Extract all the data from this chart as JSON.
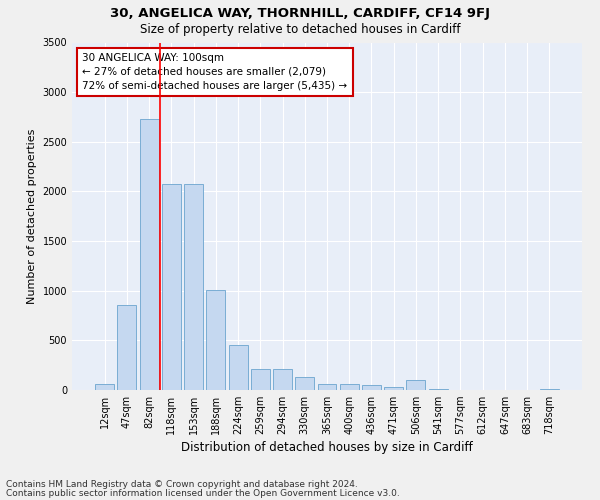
{
  "title1": "30, ANGELICA WAY, THORNHILL, CARDIFF, CF14 9FJ",
  "title2": "Size of property relative to detached houses in Cardiff",
  "xlabel": "Distribution of detached houses by size in Cardiff",
  "ylabel": "Number of detached properties",
  "categories": [
    "12sqm",
    "47sqm",
    "82sqm",
    "118sqm",
    "153sqm",
    "188sqm",
    "224sqm",
    "259sqm",
    "294sqm",
    "330sqm",
    "365sqm",
    "400sqm",
    "436sqm",
    "471sqm",
    "506sqm",
    "541sqm",
    "577sqm",
    "612sqm",
    "647sqm",
    "683sqm",
    "718sqm"
  ],
  "values": [
    60,
    855,
    2730,
    2075,
    2075,
    1010,
    455,
    215,
    215,
    130,
    65,
    65,
    50,
    30,
    100,
    10,
    0,
    0,
    0,
    0,
    10
  ],
  "bar_color": "#c5d8f0",
  "bar_edge_color": "#7aadd4",
  "fig_background": "#f0f0f0",
  "ax_background": "#e8eef8",
  "grid_color": "#ffffff",
  "annotation_text": "30 ANGELICA WAY: 100sqm\n← 27% of detached houses are smaller (2,079)\n72% of semi-detached houses are larger (5,435) →",
  "annotation_box_facecolor": "#ffffff",
  "annotation_box_edgecolor": "#cc0000",
  "red_line_x": 2.5,
  "ylim": [
    0,
    3500
  ],
  "yticks": [
    0,
    500,
    1000,
    1500,
    2000,
    2500,
    3000,
    3500
  ],
  "footer1": "Contains HM Land Registry data © Crown copyright and database right 2024.",
  "footer2": "Contains public sector information licensed under the Open Government Licence v3.0."
}
